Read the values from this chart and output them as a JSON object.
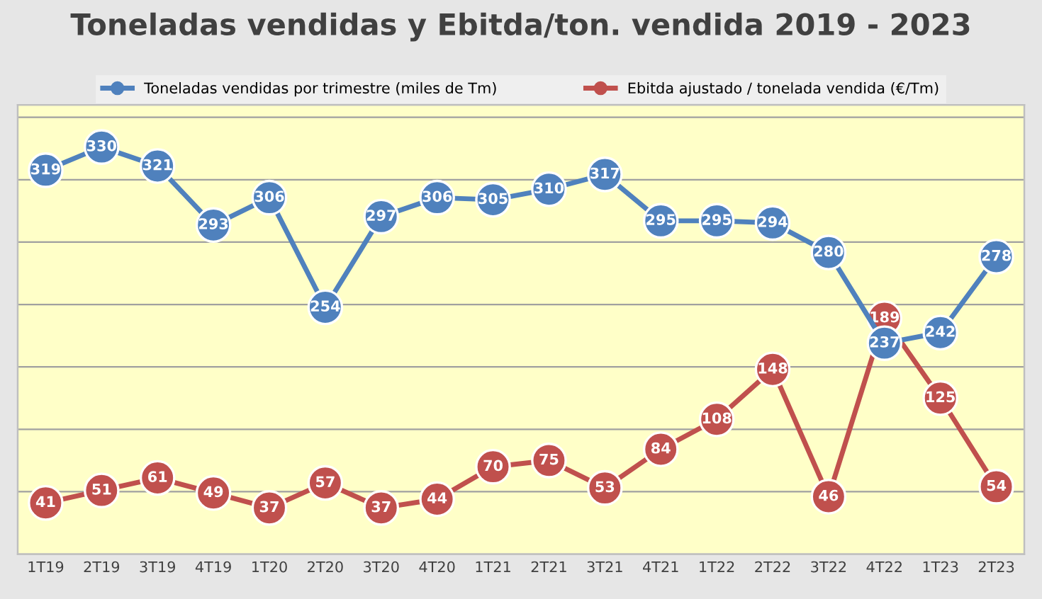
{
  "chart_data": {
    "type": "line",
    "title": "Toneladas vendidas y Ebitda/ton. vendida 2019 - 2023",
    "categories": [
      "1T19",
      "2T19",
      "3T19",
      "4T19",
      "1T20",
      "2T20",
      "3T20",
      "4T20",
      "1T21",
      "2T21",
      "3T21",
      "4T21",
      "1T22",
      "2T22",
      "3T22",
      "4T22",
      "1T23",
      "2T23"
    ],
    "series": [
      {
        "name": "Toneladas vendidas por trimestre (miles de Tm)",
        "color": "#4f81bd",
        "axis": "y2",
        "values": [
          319,
          330,
          321,
          293,
          306,
          254,
          297,
          306,
          305,
          310,
          317,
          295,
          295,
          294,
          280,
          237,
          242,
          278
        ]
      },
      {
        "name": "Ebitda ajustado / tonelada vendida (€/Tm)",
        "color": "#c0504d",
        "axis": "y",
        "values": [
          41,
          51,
          61,
          49,
          37,
          57,
          37,
          44,
          70,
          75,
          53,
          84,
          108,
          148,
          46,
          189,
          125,
          54
        ]
      }
    ],
    "ylim": [
      0,
      360
    ],
    "yticks": [
      {
        "value": 50,
        "label": null
      },
      {
        "value": 100,
        "label": null
      },
      {
        "value": 150,
        "label": null
      },
      {
        "value": 200,
        "label": null
      },
      {
        "value": 250,
        "label": null
      },
      {
        "value": 300,
        "label": null
      },
      {
        "value": 350,
        "label": null
      }
    ],
    "y2lim": [
      137,
      350
    ],
    "tick_labels": "x",
    "grid": "y",
    "legend": "top",
    "marker": "circle",
    "line_style": "solid",
    "data_labels": true
  }
}
